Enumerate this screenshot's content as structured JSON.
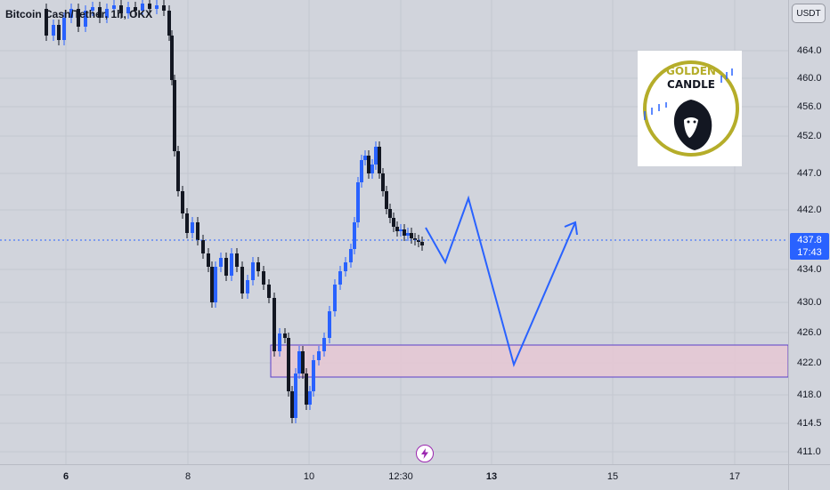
{
  "symbol": {
    "title": "Bitcoin Cash/Tether, 1h, OKX"
  },
  "axis": {
    "currency": "USDT",
    "price_ticks": [
      "464.0",
      "460.0",
      "456.0",
      "452.0",
      "447.0",
      "442.0",
      "434.0",
      "430.0",
      "426.0",
      "422.0",
      "418.0",
      "414.5",
      "411.0"
    ],
    "time_ticks": [
      "6",
      "8",
      "10",
      "12:30",
      "13",
      "15",
      "17"
    ]
  },
  "last_price": {
    "value": "437.8",
    "countdown": "17:43"
  },
  "logo": {
    "word1": "GOLDEN",
    "word2": "CANDLE"
  },
  "colors": {
    "up": "#2962ff",
    "down": "#131722",
    "projection": "#2962ff",
    "zone_fill": "#e6c7d3",
    "zone_border": "#5b3fc9",
    "logo_ring": "#b5ad2a"
  },
  "icons": {
    "flash": "lightning-icon"
  }
}
